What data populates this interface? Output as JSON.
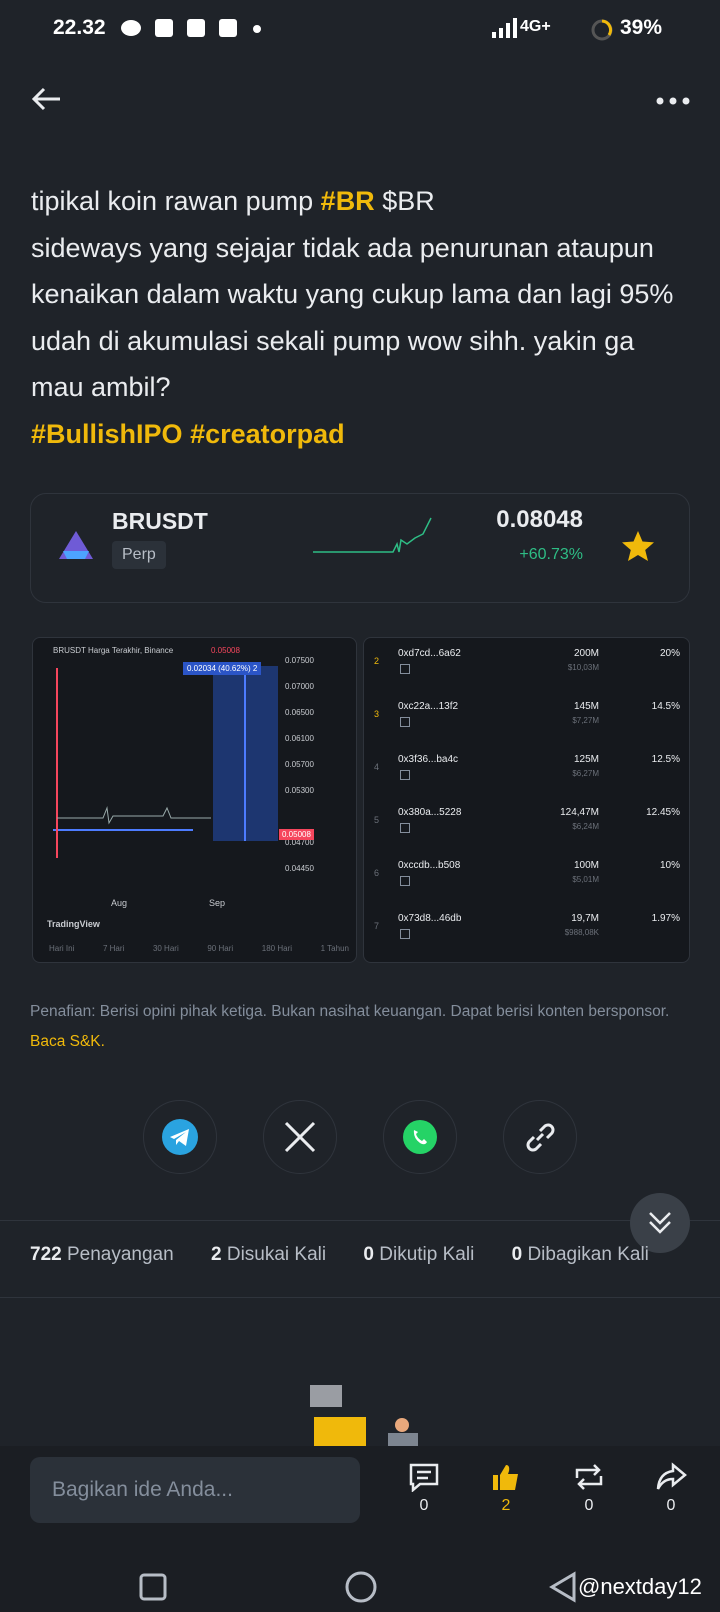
{
  "status_bar": {
    "time": "22.32",
    "network": "4G+",
    "battery": "39%"
  },
  "post": {
    "intro": "tipikal koin rawan pump",
    "tag": "#BR",
    "cashtag": "$BR",
    "body": "sideways yang sejajar tidak ada penurunan ataupun kenaikan dalam waktu yang cukup lama dan lagi 95% udah di akumulasi sekali pump wow sihh.  yakin ga mau ambil?",
    "hashtags": [
      "#BullishIPO",
      "#creatorpad"
    ]
  },
  "ticker": {
    "symbol": "BRUSDT",
    "badge": "Perp",
    "price": "0.08048",
    "change": "+60.73%"
  },
  "chart_image": {
    "title": "BRUSDT Harga Terakhir, Binance",
    "last": "0.05008",
    "measure": "0.02034 (40.62%) 2",
    "axis": [
      "0.07500",
      "0.07000",
      "0.06500",
      "0.06100",
      "0.05700",
      "0.05300",
      "0.04700",
      "0.04450"
    ],
    "months": [
      "Aug",
      "Sep"
    ],
    "brand": "TradingView",
    "ranges": [
      "Hari Ini",
      "7 Hari",
      "30 Hari",
      "90 Hari",
      "180 Hari",
      "1 Tahun"
    ]
  },
  "holders": [
    {
      "rank": "2",
      "address": "0xd7cd...6a62",
      "amount": "200M",
      "usd": "$10,03M",
      "pct": "20%"
    },
    {
      "rank": "3",
      "address": "0xc22a...13f2",
      "amount": "145M",
      "usd": "$7,27M",
      "pct": "14.5%"
    },
    {
      "rank": "4",
      "address": "0x3f36...ba4c",
      "amount": "125M",
      "usd": "$6,27M",
      "pct": "12.5%"
    },
    {
      "rank": "5",
      "address": "0x380a...5228",
      "amount": "124,47M",
      "usd": "$6,24M",
      "pct": "12.45%"
    },
    {
      "rank": "6",
      "address": "0xccdb...b508",
      "amount": "100M",
      "usd": "$5,01M",
      "pct": "10%"
    },
    {
      "rank": "7",
      "address": "0x73d8...46db",
      "amount": "19,7M",
      "usd": "$988,08K",
      "pct": "1.97%"
    }
  ],
  "disclaimer": {
    "text": "Penafian: Berisi opini pihak ketiga. Bukan nasihat keuangan. Dapat berisi konten bersponsor.",
    "link": "Baca S&K."
  },
  "stats": [
    {
      "count": "722",
      "label": "Penayangan"
    },
    {
      "count": "2",
      "label": "Disukai Kali"
    },
    {
      "count": "0",
      "label": "Dikutip Kali"
    },
    {
      "count": "0",
      "label": "Dibagikan Kali"
    }
  ],
  "comment": {
    "placeholder": "Bagikan ide Anda..."
  },
  "actions": {
    "comments": "0",
    "likes": "2",
    "reposts": "0",
    "shares": "0"
  },
  "watermark": "@nextday12"
}
